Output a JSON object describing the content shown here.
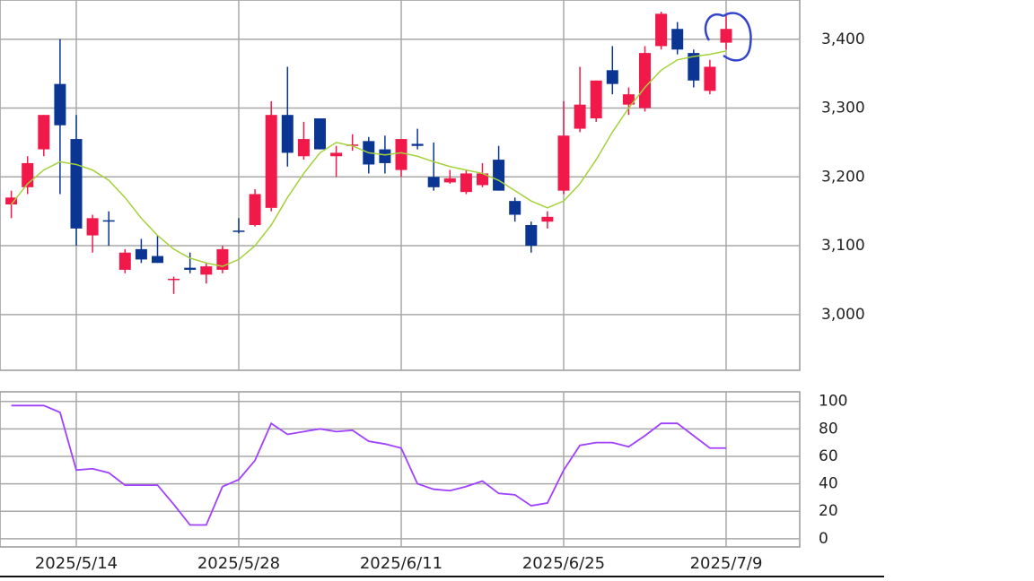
{
  "chart_data": [
    {
      "type": "candlestick",
      "open": [
        3160,
        3185,
        3240,
        3335,
        3255,
        3115,
        3137,
        3065,
        3095,
        3085,
        3050,
        3068,
        3058,
        3065,
        3122,
        3130,
        3155,
        3290,
        3230,
        3285,
        3230,
        3245,
        3252,
        3240,
        3210,
        3248,
        3200,
        3192,
        3178,
        3188,
        3225,
        3165,
        3130,
        3135,
        3180,
        3270,
        3285,
        3355,
        3305,
        3300,
        3390,
        3415,
        3380,
        3325,
        3395
      ],
      "high": [
        3180,
        3230,
        3290,
        3400,
        3290,
        3145,
        3150,
        3095,
        3110,
        3115,
        3055,
        3090,
        3075,
        3100,
        3140,
        3182,
        3310,
        3360,
        3280,
        3285,
        3245,
        3262,
        3258,
        3260,
        3255,
        3270,
        3250,
        3210,
        3210,
        3220,
        3245,
        3170,
        3135,
        3150,
        3310,
        3360,
        3340,
        3390,
        3330,
        3390,
        3440,
        3425,
        3385,
        3370,
        3435
      ],
      "low": [
        3140,
        3175,
        3230,
        3175,
        3100,
        3090,
        3100,
        3060,
        3075,
        3075,
        3030,
        3060,
        3045,
        3060,
        3118,
        3128,
        3150,
        3215,
        3225,
        3240,
        3200,
        3238,
        3205,
        3205,
        3200,
        3240,
        3180,
        3190,
        3175,
        3185,
        3180,
        3135,
        3090,
        3125,
        3175,
        3265,
        3280,
        3320,
        3290,
        3295,
        3385,
        3378,
        3330,
        3320,
        3385
      ],
      "close": [
        3170,
        3220,
        3290,
        3275,
        3125,
        3140,
        3135,
        3090,
        3080,
        3075,
        3052,
        3065,
        3070,
        3095,
        3120,
        3175,
        3290,
        3235,
        3255,
        3240,
        3235,
        3247,
        3218,
        3220,
        3255,
        3245,
        3185,
        3198,
        3205,
        3205,
        3180,
        3145,
        3100,
        3142,
        3260,
        3305,
        3340,
        3335,
        3320,
        3380,
        3437,
        3385,
        3340,
        3360,
        3415
      ],
      "up_color": "#f0194a",
      "down_color": "#0b3593",
      "moving_average": {
        "color": "#a5d13a",
        "values": [
          3160,
          3190,
          3210,
          3222,
          3218,
          3210,
          3195,
          3170,
          3140,
          3115,
          3095,
          3082,
          3075,
          3070,
          3080,
          3100,
          3130,
          3170,
          3205,
          3235,
          3250,
          3245,
          3235,
          3232,
          3235,
          3230,
          3222,
          3215,
          3210,
          3205,
          3195,
          3180,
          3165,
          3155,
          3165,
          3190,
          3225,
          3265,
          3300,
          3330,
          3355,
          3370,
          3375,
          3378,
          3383
        ]
      },
      "ylim": [
        2919,
        3457
      ],
      "yticks": [
        {
          "value": 3000,
          "label": "3,000"
        },
        {
          "value": 3100,
          "label": "3,100"
        },
        {
          "value": 3200,
          "label": "3,200"
        },
        {
          "value": 3300,
          "label": "3,300"
        },
        {
          "value": 3400,
          "label": "3,400"
        }
      ],
      "grid": true
    },
    {
      "type": "line",
      "categories": [
        null,
        null,
        null,
        null,
        "2025/5/14",
        null,
        null,
        null,
        null,
        null,
        null,
        null,
        null,
        null,
        "2025/5/28",
        null,
        null,
        null,
        null,
        null,
        null,
        null,
        null,
        null,
        "2025/6/11",
        null,
        null,
        null,
        null,
        null,
        null,
        null,
        null,
        null,
        "2025/6/25",
        null,
        null,
        null,
        null,
        null,
        null,
        null,
        null,
        null,
        "2025/7/9"
      ],
      "series": [
        {
          "color": "#a040ff",
          "values": [
            97,
            97,
            97,
            92,
            50,
            51,
            48,
            39,
            39,
            39,
            25,
            10,
            10,
            38,
            43,
            57,
            84,
            76,
            78,
            80,
            78,
            79,
            71,
            69,
            66,
            40,
            36,
            35,
            38,
            42,
            33,
            32,
            24,
            26,
            50,
            68,
            70,
            70,
            67,
            75,
            84,
            84,
            75,
            66,
            66
          ]
        }
      ],
      "ylim": [
        -6,
        107
      ],
      "yticks": [
        0,
        20,
        40,
        60,
        80,
        100
      ],
      "grid": true
    }
  ]
}
